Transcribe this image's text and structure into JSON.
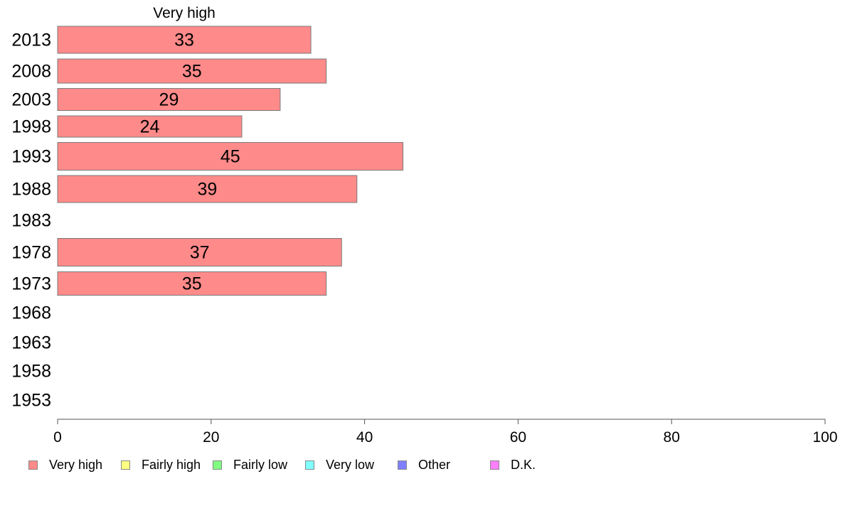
{
  "chart_data": {
    "type": "bar",
    "orientation": "horizontal",
    "categories": [
      "2013",
      "2008",
      "2003",
      "1998",
      "1993",
      "1988",
      "1983",
      "1978",
      "1973",
      "1968",
      "1963",
      "1958",
      "1953"
    ],
    "series": [
      {
        "name": "Very high",
        "values": [
          33,
          35,
          29,
          24,
          45,
          39,
          null,
          37,
          35,
          null,
          null,
          null,
          null
        ],
        "color": "#ff8a8a"
      }
    ],
    "xlim": [
      0,
      100
    ],
    "xticks": [
      "0",
      "20",
      "40",
      "60",
      "80",
      "100"
    ],
    "series_header": "Very high",
    "legend": {
      "placement": "bottom",
      "entries": [
        {
          "label": "Very high",
          "color": "#ff8a8a"
        },
        {
          "label": "Fairly high",
          "color": "#ffff80"
        },
        {
          "label": "Fairly low",
          "color": "#80ff80"
        },
        {
          "label": "Very low",
          "color": "#80ffff"
        },
        {
          "label": "Other",
          "color": "#8080ff"
        },
        {
          "label": "D.K.",
          "color": "#ff80ff"
        }
      ]
    },
    "grid": false
  }
}
